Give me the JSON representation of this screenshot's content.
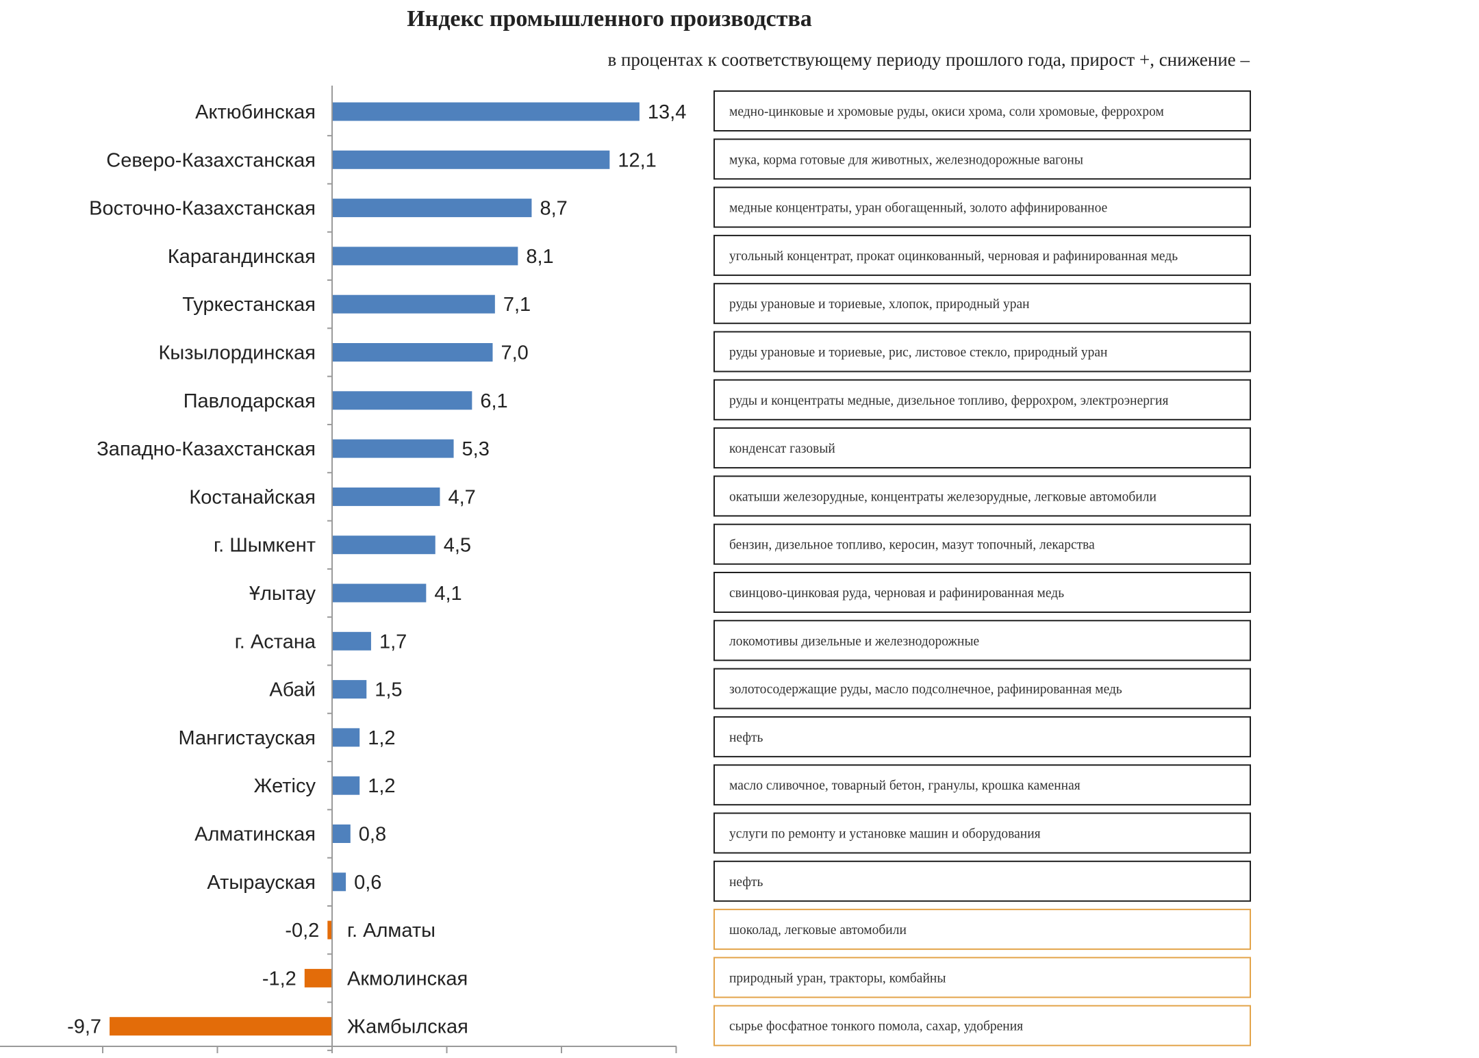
{
  "chart_data": {
    "type": "bar",
    "orientation": "horizontal",
    "title": "Индекс промышленного  производства",
    "subtitle": "в процентах к соответствующему периоду  прошлого года, прирост +, снижение –",
    "categories": [
      "Актюбинская",
      "Северо-Казахстанская",
      "Восточно-Казахстанская",
      "Карагандинская",
      "Туркестанская",
      "Кызылординская",
      "Павлодарская",
      "Западно-Казахстанская",
      "Костанайская",
      "г. Шымкент",
      "Ұлытау",
      "г. Астана",
      "Абай",
      "Мангистауская",
      "Жетісу",
      "Алматинская",
      "Атырауская",
      "г. Алматы",
      "Акмолинская",
      "Жамбылская"
    ],
    "values": [
      13.4,
      12.1,
      8.7,
      8.1,
      7.1,
      7.0,
      6.1,
      5.3,
      4.7,
      4.5,
      4.1,
      1.7,
      1.5,
      1.2,
      1.2,
      0.8,
      0.6,
      -0.2,
      -1.2,
      -9.7
    ],
    "value_labels": [
      "13,4",
      "12,1",
      "8,7",
      "8,1",
      "7,1",
      "7,0",
      "6,1",
      "5,3",
      "4,7",
      "4,5",
      "4,1",
      "1,7",
      "1,5",
      "1,2",
      "1,2",
      "0,8",
      "0,6",
      "-0,2",
      "-1,2",
      "-9,7"
    ],
    "descriptions": [
      "медно-цинковые и хромовые руды, окиси хрома, соли хромовые, феррохром",
      "мука, корма готовые для животных, железнодорожные вагоны",
      "медные концентраты, уран обогащенный, золото аффинированное",
      "угольный концентрат, прокат оцинкованный, черновая и рафинированная медь",
      "руды урановые и ториевые, хлопок, природный уран",
      "руды урановые и ториевые, рис, листовое стекло, природный уран",
      "руды и концентраты медные, дизельное топливо, феррохром, электроэнергия",
      "конденсат газовый",
      "окатыши железорудные, концентраты железорудные, легковые автомобили",
      "бензин, дизельное топливо, керосин, мазут топочный, лекарства",
      "свинцово-цинковая руда, черновая и рафинированная медь",
      "локомотивы дизельные и железнодорожные",
      "золотосодержащие руды, масло подсолнечное, рафинированная медь",
      "нефть",
      "масло сливочное, товарный бетон, гранулы, крошка каменная",
      "услуги по ремонту и установке машин и оборудования",
      "нефть",
      "шоколад, легковые автомобили",
      "природный уран, тракторы, комбайны",
      "сырье фосфатное тонкого помола, сахар, удобрения"
    ],
    "xlim": [
      -10,
      15
    ],
    "legend": "none",
    "grid": false,
    "colors": {
      "positive": "#4f81bd",
      "negative": "#e36c09",
      "box_positive": "#1f1f1f",
      "box_negative": "#e3a44a"
    }
  }
}
